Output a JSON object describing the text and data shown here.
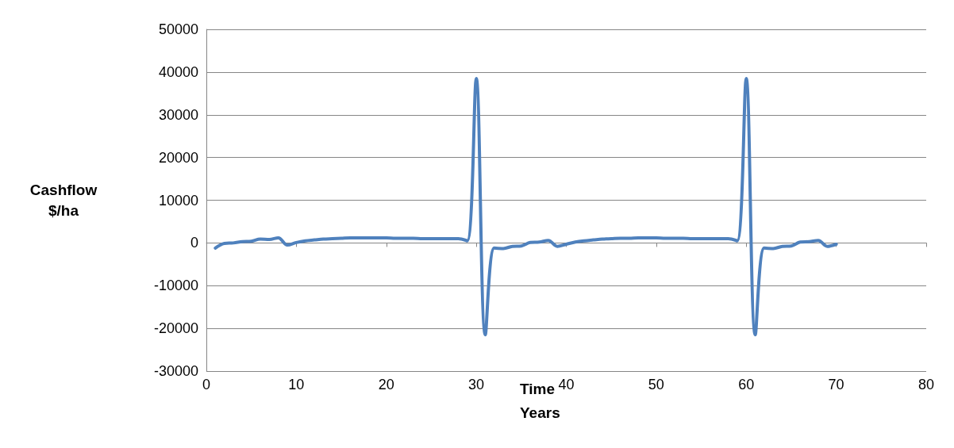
{
  "chart_data": {
    "type": "line",
    "xlabel": "Time\nYears",
    "ylabel": "Cashflow\n$/ha",
    "x": [
      1,
      2,
      3,
      4,
      5,
      6,
      7,
      8,
      9,
      10,
      11,
      12,
      13,
      14,
      15,
      16,
      17,
      18,
      19,
      20,
      21,
      22,
      23,
      24,
      25,
      26,
      27,
      28,
      29,
      30,
      31,
      32,
      33,
      34,
      35,
      36,
      37,
      38,
      39,
      40,
      41,
      42,
      43,
      44,
      45,
      46,
      47,
      48,
      49,
      50,
      51,
      52,
      53,
      54,
      55,
      56,
      57,
      58,
      59,
      60,
      61,
      62,
      63,
      64,
      65,
      66,
      67,
      68,
      69,
      70
    ],
    "series": [
      {
        "color": "#4f81bd",
        "values": [
          -1200,
          -100,
          0,
          300,
          400,
          900,
          800,
          1200,
          -500,
          100,
          500,
          700,
          900,
          1000,
          1100,
          1200,
          1200,
          1200,
          1200,
          1200,
          1100,
          1100,
          1100,
          1000,
          1000,
          1000,
          1000,
          1000,
          500,
          38500,
          -21500,
          -1200,
          -1300,
          -800,
          -700,
          100,
          200,
          600,
          -800,
          -300,
          200,
          500,
          700,
          900,
          1000,
          1100,
          1100,
          1200,
          1200,
          1200,
          1100,
          1100,
          1100,
          1000,
          1000,
          1000,
          1000,
          1000,
          500,
          38500,
          -21500,
          -1200,
          -1300,
          -800,
          -700,
          200,
          300,
          600,
          -800,
          -300
        ]
      }
    ],
    "xlim": [
      0,
      80
    ],
    "xticks": [
      0,
      10,
      20,
      30,
      40,
      50,
      60,
      70,
      80
    ],
    "ylim": [
      -30000,
      50000
    ],
    "yticks": [
      -30000,
      -20000,
      -10000,
      0,
      10000,
      20000,
      30000,
      40000,
      50000
    ],
    "grid": "y",
    "marker": "none",
    "line_style": "solid"
  }
}
